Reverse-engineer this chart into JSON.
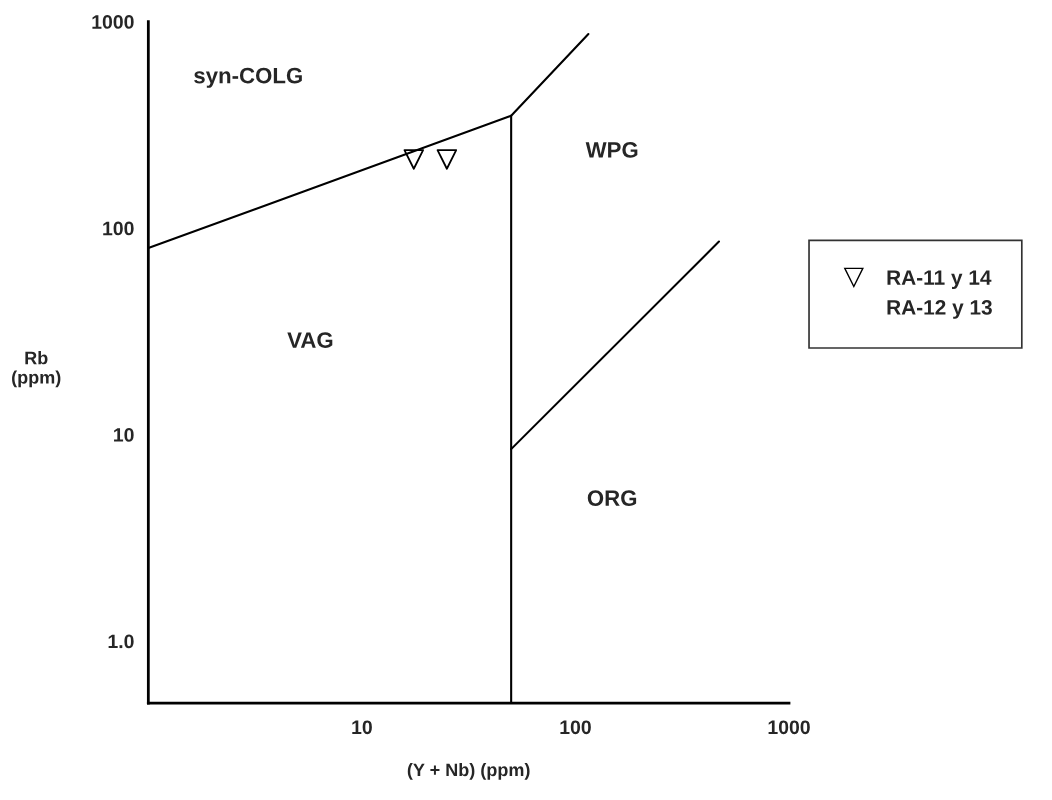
{
  "chart_data": {
    "type": "scatter",
    "xlabel": "(Y + Nb) (ppm)",
    "ylabel": "Rb\n(ppm)",
    "log": "xy",
    "xlim": [
      1,
      1000
    ],
    "ylim": [
      0.5,
      1000
    ],
    "xticks": [
      10,
      100,
      1000
    ],
    "yticks": [
      {
        "value": 1,
        "label": "1.0"
      },
      10,
      100,
      1000
    ],
    "grid": false,
    "legend": "right",
    "series": [
      {
        "type": "line",
        "color": "#000000",
        "x": [
          1,
          50
        ],
        "values": [
          80,
          350
        ],
        "marker": "none"
      },
      {
        "type": "line",
        "color": "#000000",
        "x": [
          50,
          115
        ],
        "values": [
          350,
          870
        ],
        "marker": "none"
      },
      {
        "type": "line",
        "color": "#000000",
        "x": [
          50,
          50
        ],
        "values": [
          0.5,
          350
        ],
        "marker": "none"
      },
      {
        "type": "line",
        "color": "#000000",
        "x": [
          50,
          470
        ],
        "values": [
          8.5,
          86
        ],
        "marker": "none"
      },
      {
        "name": "RA-11 y 14",
        "color": "#000000",
        "x": [
          17.5,
          25
        ],
        "values": [
          215,
          215
        ],
        "marker": "triangle"
      },
      {
        "name": "RA-12 y 13",
        "color": "#000000",
        "marker": "none"
      }
    ],
    "annotations": [
      "syn-COLG",
      "VAG",
      "WPG",
      "ORG"
    ]
  }
}
